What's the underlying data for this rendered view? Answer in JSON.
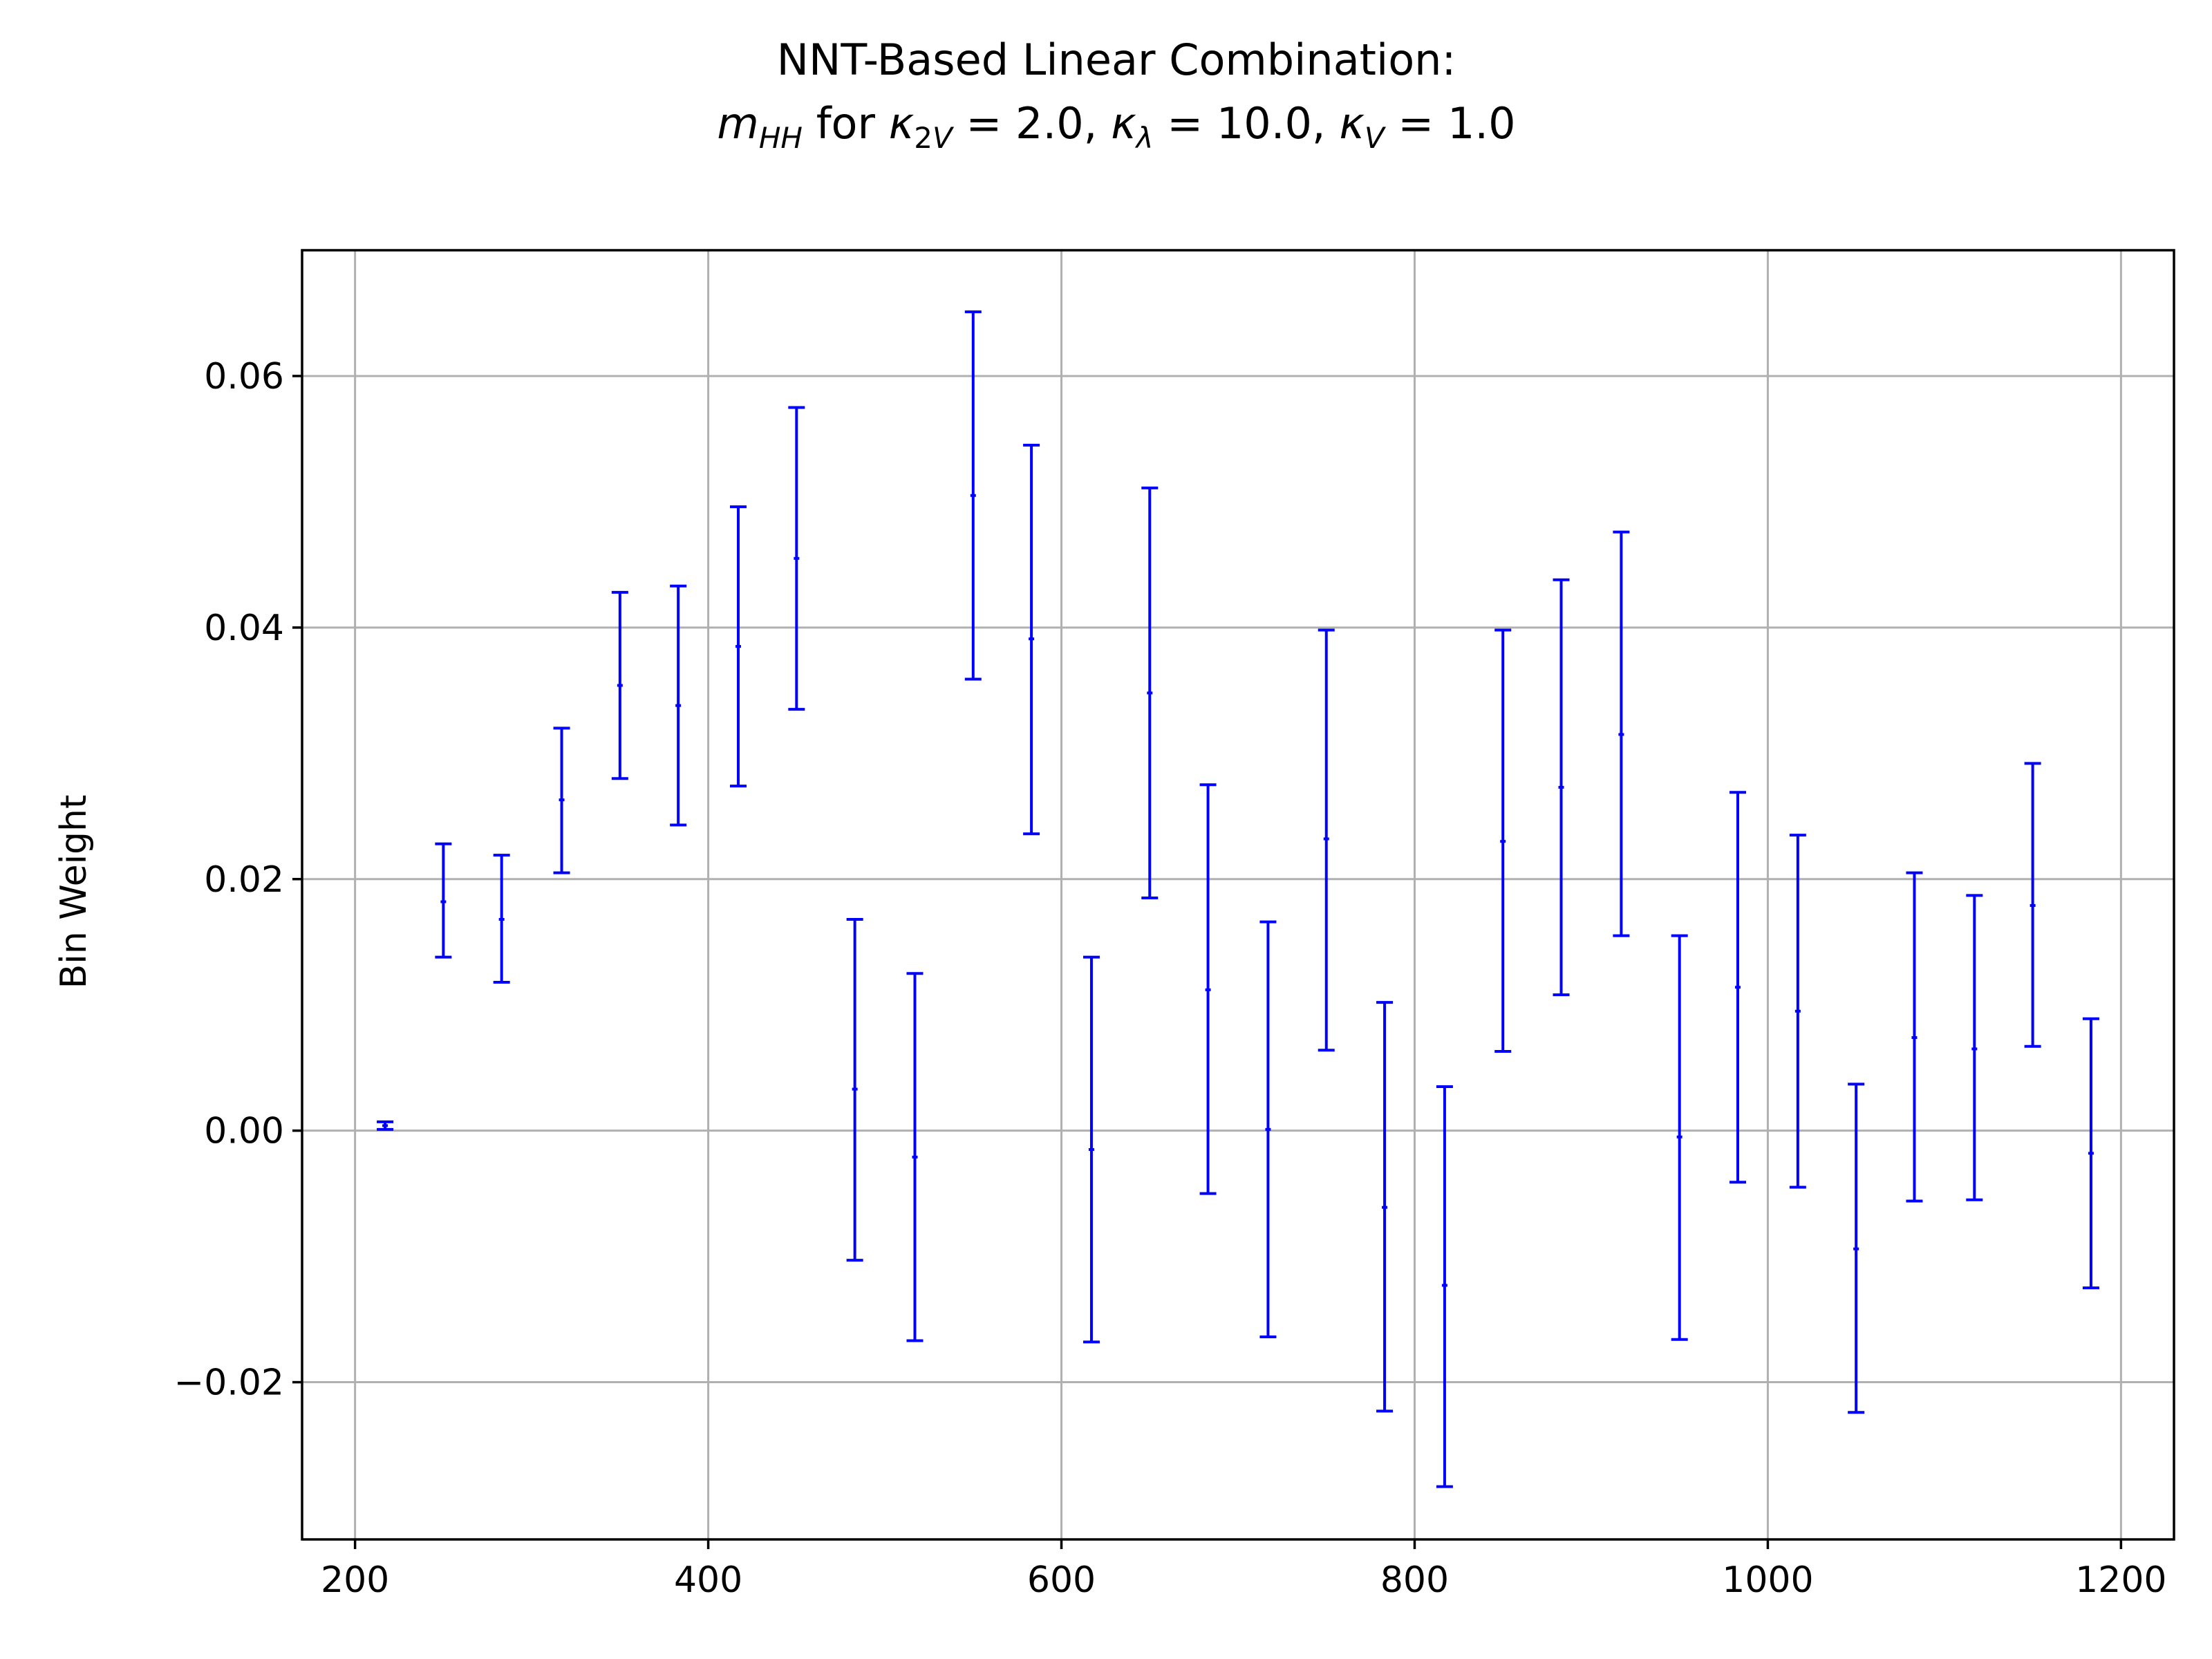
{
  "chart_data": {
    "type": "errorbar",
    "title_line1": "NNT-Based Linear Combination:",
    "title_line2": "m_HH for κ_2V = 2.0, κ_λ = 10.0, κ_V = 1.0",
    "xlabel": "",
    "ylabel": "Bin Weight",
    "xlim": [
      170,
      1230
    ],
    "ylim": [
      -0.0325,
      0.07
    ],
    "xticks": [
      200,
      400,
      600,
      800,
      1000,
      1200
    ],
    "xtick_labels": [
      "200",
      "400",
      "600",
      "800",
      "1000",
      "1200"
    ],
    "yticks": [
      -0.02,
      0.0,
      0.02,
      0.04,
      0.06
    ],
    "ytick_labels": [
      "−0.02",
      "0.00",
      "0.02",
      "0.04",
      "0.06"
    ],
    "grid": true,
    "color": "#0000ff",
    "points": [
      {
        "x": 217,
        "y": 0.0004,
        "lo": 0.0001,
        "hi": 0.0007
      },
      {
        "x": 250,
        "y": 0.0182,
        "lo": 0.0138,
        "hi": 0.0228
      },
      {
        "x": 283,
        "y": 0.0168,
        "lo": 0.0118,
        "hi": 0.0219
      },
      {
        "x": 317,
        "y": 0.0263,
        "lo": 0.0205,
        "hi": 0.032
      },
      {
        "x": 350,
        "y": 0.0354,
        "lo": 0.028,
        "hi": 0.0428
      },
      {
        "x": 383,
        "y": 0.0338,
        "lo": 0.0243,
        "hi": 0.0433
      },
      {
        "x": 417,
        "y": 0.0385,
        "lo": 0.0274,
        "hi": 0.0496
      },
      {
        "x": 450,
        "y": 0.0455,
        "lo": 0.0335,
        "hi": 0.0575
      },
      {
        "x": 483,
        "y": 0.0033,
        "lo": -0.0103,
        "hi": 0.0168
      },
      {
        "x": 517,
        "y": -0.0021,
        "lo": -0.0167,
        "hi": 0.0125
      },
      {
        "x": 550,
        "y": 0.0505,
        "lo": 0.0359,
        "hi": 0.0651
      },
      {
        "x": 583,
        "y": 0.0391,
        "lo": 0.0236,
        "hi": 0.0545
      },
      {
        "x": 617,
        "y": -0.0015,
        "lo": -0.0168,
        "hi": 0.0138
      },
      {
        "x": 650,
        "y": 0.0348,
        "lo": 0.0185,
        "hi": 0.0511
      },
      {
        "x": 683,
        "y": 0.0112,
        "lo": -0.005,
        "hi": 0.0275
      },
      {
        "x": 717,
        "y": 0.0001,
        "lo": -0.0164,
        "hi": 0.0166
      },
      {
        "x": 750,
        "y": 0.0232,
        "lo": 0.0064,
        "hi": 0.0398
      },
      {
        "x": 783,
        "y": -0.0061,
        "lo": -0.0223,
        "hi": 0.0102
      },
      {
        "x": 817,
        "y": -0.0123,
        "lo": -0.0283,
        "hi": 0.0035
      },
      {
        "x": 850,
        "y": 0.023,
        "lo": 0.0063,
        "hi": 0.0398
      },
      {
        "x": 883,
        "y": 0.0273,
        "lo": 0.0108,
        "hi": 0.0438
      },
      {
        "x": 917,
        "y": 0.0315,
        "lo": 0.0155,
        "hi": 0.0476
      },
      {
        "x": 950,
        "y": -0.0005,
        "lo": -0.0166,
        "hi": 0.0155
      },
      {
        "x": 983,
        "y": 0.0114,
        "lo": -0.0041,
        "hi": 0.0269
      },
      {
        "x": 1017,
        "y": 0.0095,
        "lo": -0.0045,
        "hi": 0.0235
      },
      {
        "x": 1050,
        "y": -0.0094,
        "lo": -0.0224,
        "hi": 0.0037
      },
      {
        "x": 1083,
        "y": 0.0074,
        "lo": -0.0056,
        "hi": 0.0205
      },
      {
        "x": 1117,
        "y": 0.0065,
        "lo": -0.0055,
        "hi": 0.0187
      },
      {
        "x": 1150,
        "y": 0.0179,
        "lo": 0.0067,
        "hi": 0.0292
      },
      {
        "x": 1183,
        "y": -0.0018,
        "lo": -0.0125,
        "hi": 0.0089
      }
    ]
  }
}
